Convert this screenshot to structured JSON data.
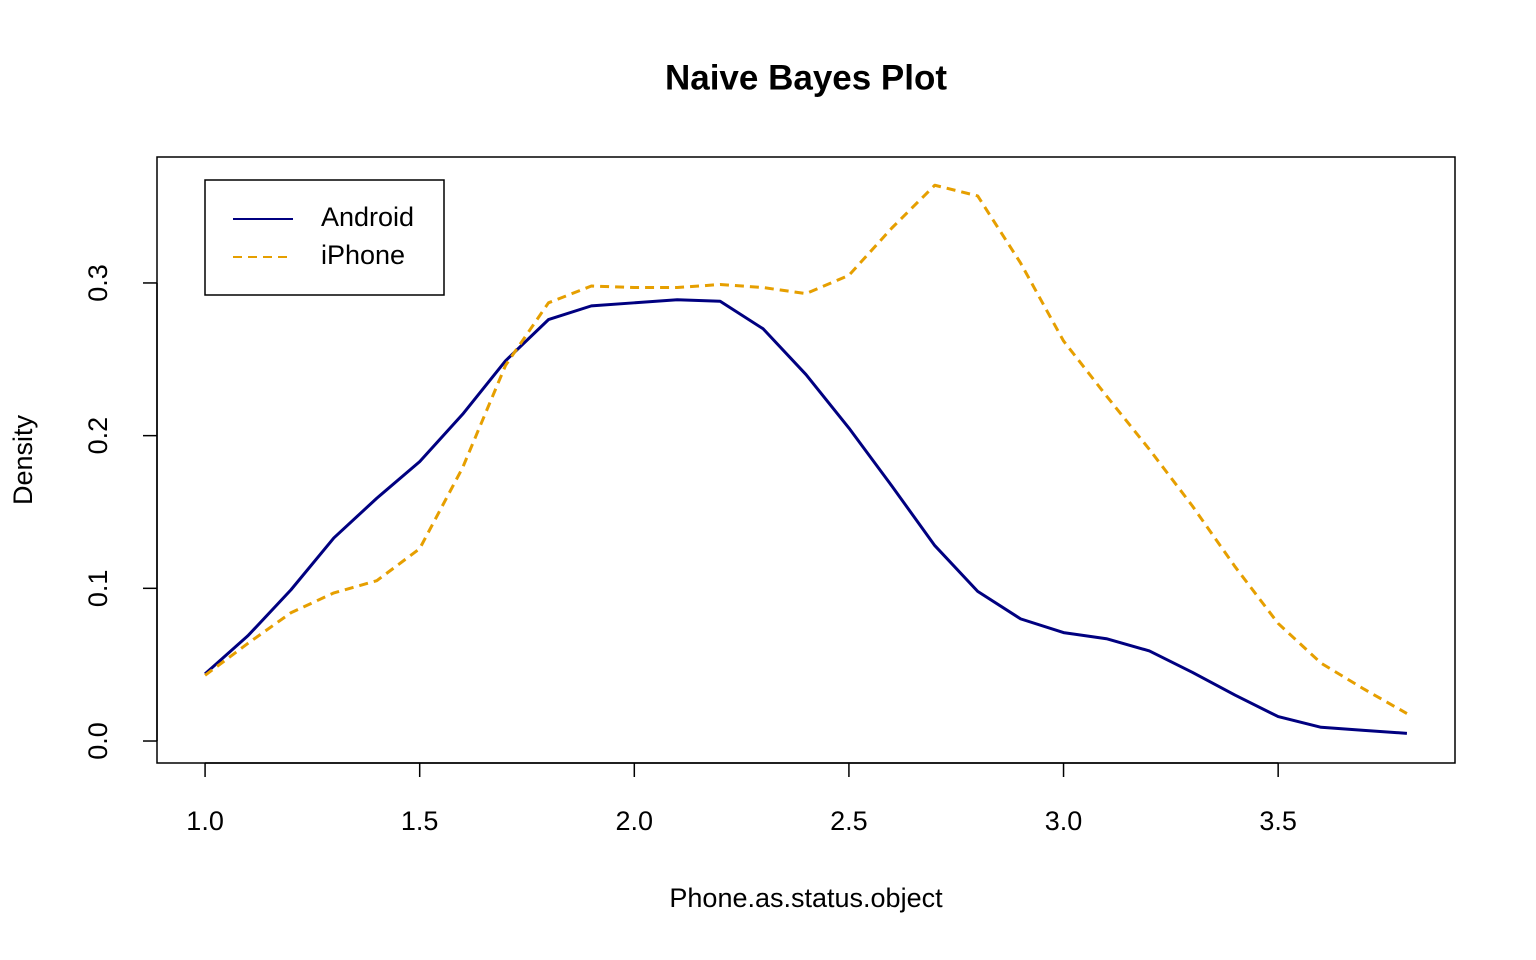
{
  "chart_data": {
    "type": "line",
    "title": "Naive Bayes Plot",
    "x_label": "Phone.as.status.object",
    "y_label": "Density",
    "x": [
      1.0,
      1.1,
      1.2,
      1.3,
      1.4,
      1.5,
      1.6,
      1.7,
      1.8,
      1.9,
      2.0,
      2.1,
      2.2,
      2.3,
      2.4,
      2.5,
      2.6,
      2.7,
      2.8,
      2.9,
      3.0,
      3.1,
      3.2,
      3.3,
      3.4,
      3.5,
      3.6,
      3.7,
      3.8
    ],
    "series": [
      {
        "name": "Android",
        "color": "#000080",
        "dash": "solid",
        "values": [
          0.044,
          0.069,
          0.099,
          0.133,
          0.159,
          0.183,
          0.214,
          0.249,
          0.276,
          0.285,
          0.287,
          0.289,
          0.288,
          0.27,
          0.24,
          0.205,
          0.167,
          0.128,
          0.098,
          0.08,
          0.071,
          0.067,
          0.059,
          0.045,
          0.03,
          0.016,
          0.009,
          0.007,
          0.005
        ]
      },
      {
        "name": "iPhone",
        "color": "#e69f00",
        "dash": "dashed",
        "values": [
          0.043,
          0.064,
          0.084,
          0.097,
          0.105,
          0.126,
          0.179,
          0.246,
          0.287,
          0.298,
          0.297,
          0.297,
          0.299,
          0.297,
          0.293,
          0.305,
          0.336,
          0.364,
          0.357,
          0.313,
          0.262,
          0.226,
          0.191,
          0.154,
          0.114,
          0.077,
          0.051,
          0.034,
          0.018
        ]
      }
    ],
    "xlim": [
      0.888,
      3.912
    ],
    "ylim": [
      -0.0144,
      0.3825
    ],
    "xticks": [
      {
        "value": 1.0,
        "label": "1.0"
      },
      1.5,
      {
        "value": 2.0,
        "label": "2.0"
      },
      2.5,
      {
        "value": 3.0,
        "label": "3.0"
      },
      3.5
    ],
    "yticks": [
      {
        "value": 0.0,
        "label": "0.0"
      },
      0.1,
      0.2,
      0.3
    ],
    "legend": "top-left",
    "grid": false
  }
}
